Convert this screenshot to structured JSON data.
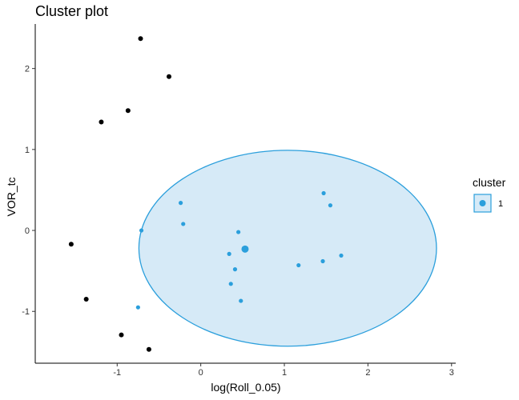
{
  "chart_data": {
    "type": "scatter",
    "title": "Cluster plot",
    "xlabel": "log(Roll_0.05)",
    "ylabel": "VOR_tc",
    "xlim": [
      -1.98,
      3.05
    ],
    "ylim": [
      -1.64,
      2.55
    ],
    "x_ticks": [
      -1,
      0,
      1,
      2,
      3
    ],
    "y_ticks": [
      -1,
      0,
      1,
      2
    ],
    "grid": false,
    "legend": {
      "title": "cluster",
      "position": "right",
      "entries": [
        "1"
      ]
    },
    "cluster_color": "#2b9fdc",
    "cluster_fill": "#d6eaf7",
    "outlier_color": "#000000",
    "ellipse": {
      "center": [
        1.04,
        -0.22
      ],
      "semi_axis_x": 1.78,
      "semi_axis_y": 1.21,
      "angle_deg": 0
    },
    "cluster_points": [
      {
        "x": 1.47,
        "y": 0.46
      },
      {
        "x": 1.55,
        "y": 0.31
      },
      {
        "x": -0.24,
        "y": 0.34
      },
      {
        "x": -0.21,
        "y": 0.08
      },
      {
        "x": -0.71,
        "y": 0.0
      },
      {
        "x": 0.45,
        "y": -0.02
      },
      {
        "x": 0.34,
        "y": -0.29
      },
      {
        "x": 0.41,
        "y": -0.48
      },
      {
        "x": 0.36,
        "y": -0.66
      },
      {
        "x": 0.48,
        "y": -0.87
      },
      {
        "x": 1.17,
        "y": -0.43
      },
      {
        "x": 1.46,
        "y": -0.38
      },
      {
        "x": 1.68,
        "y": -0.31
      },
      {
        "x": -0.75,
        "y": -0.95
      }
    ],
    "cluster_center": {
      "x": 0.53,
      "y": -0.23
    },
    "outlier_points": [
      {
        "x": -0.72,
        "y": 2.37
      },
      {
        "x": -0.38,
        "y": 1.9
      },
      {
        "x": -0.87,
        "y": 1.48
      },
      {
        "x": -1.19,
        "y": 1.34
      },
      {
        "x": -1.55,
        "y": -0.17
      },
      {
        "x": -1.37,
        "y": -0.85
      },
      {
        "x": -0.95,
        "y": -1.29
      },
      {
        "x": -0.62,
        "y": -1.47
      }
    ]
  }
}
